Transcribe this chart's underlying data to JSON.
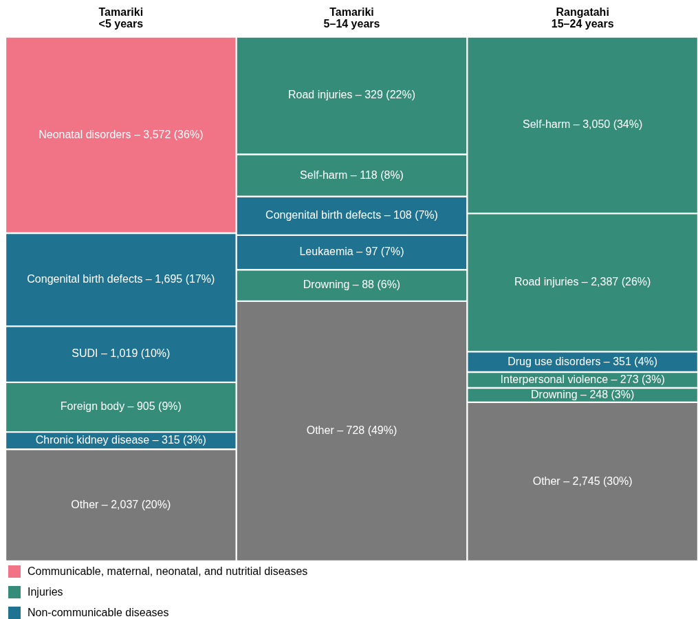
{
  "chart_data": {
    "type": "other",
    "categories": [
      "Tamariki\n<5 years",
      "Tamariki\n5–14 years",
      "Rangatahi\n15–24 years"
    ],
    "series": [
      {
        "color": "#f07386",
        "values": [
          3572,
          null,
          null
        ],
        "value_labels": [
          "3,572",
          null,
          null
        ]
      },
      {
        "color": "#1f7391",
        "values": [
          1695,
          null,
          null
        ],
        "value_labels": [
          "1,695",
          null,
          null
        ]
      },
      {
        "color": "#1f7391",
        "values": [
          1019,
          null,
          null
        ],
        "value_labels": [
          "1,019",
          null,
          null
        ]
      },
      {
        "color": "#358c78",
        "values": [
          905,
          null,
          null
        ],
        "value_labels": [
          "905",
          null,
          null
        ]
      },
      {
        "color": "#1f7391",
        "values": [
          315,
          null,
          null
        ],
        "value_labels": [
          "315",
          null,
          null
        ]
      },
      {
        "color": "#7a7a7a",
        "values": [
          2037,
          null,
          null
        ],
        "value_labels": [
          "2,037",
          null,
          null
        ]
      },
      {
        "color": "#358c78",
        "values": [
          null,
          329,
          null
        ],
        "value_labels": [
          null,
          "329",
          null
        ]
      },
      {
        "color": "#358c78",
        "values": [
          null,
          118,
          null
        ],
        "value_labels": [
          null,
          "118",
          null
        ]
      },
      {
        "color": "#1f7391",
        "values": [
          null,
          108,
          null
        ],
        "value_labels": [
          null,
          "108",
          null
        ]
      },
      {
        "color": "#1f7391",
        "values": [
          null,
          97,
          null
        ],
        "value_labels": [
          null,
          "97",
          null
        ]
      },
      {
        "color": "#358c78",
        "values": [
          null,
          88,
          null
        ],
        "value_labels": [
          null,
          "88",
          null
        ]
      },
      {
        "color": "#7a7a7a",
        "values": [
          null,
          728,
          null
        ],
        "value_labels": [
          null,
          "728",
          null
        ]
      },
      {
        "color": "#358c78",
        "values": [
          null,
          null,
          3050
        ],
        "value_labels": [
          null,
          null,
          "3,050"
        ]
      },
      {
        "color": "#358c78",
        "values": [
          null,
          null,
          2387
        ],
        "value_labels": [
          null,
          null,
          "2,387"
        ]
      },
      {
        "color": "#1f7391",
        "values": [
          null,
          null,
          351
        ],
        "value_labels": [
          null,
          null,
          "351"
        ]
      },
      {
        "color": "#358c78",
        "values": [
          null,
          null,
          273
        ],
        "value_labels": [
          null,
          null,
          "273"
        ]
      },
      {
        "color": "#358c78",
        "values": [
          null,
          null,
          248
        ],
        "value_labels": [
          null,
          null,
          "248"
        ]
      },
      {
        "color": "#7a7a7a",
        "values": [
          null,
          null,
          2745
        ],
        "value_labels": [
          null,
          null,
          "2,745"
        ]
      },
      {
        "name": "Communicable, maternal, neonatal, and nutritial diseases",
        "color": "#f07386",
        "values": [
          null,
          null,
          null
        ]
      },
      {
        "name": "Injuries",
        "color": "#358c78",
        "values": [
          null,
          null,
          null
        ]
      },
      {
        "name": "Non-communicable diseases",
        "color": "#1f7391",
        "values": [
          null,
          null,
          null
        ]
      }
    ],
    "annotations": [
      "Neonatal disorders –",
      "(36%)",
      "Congenital birth defects –",
      "(17%)",
      "SUDI –",
      "(10%)",
      "Foreign body –",
      "(9%)",
      "Chronic kidney disease –",
      "(3%)",
      "Other –",
      "(20%)",
      "Road injuries –",
      "(22%)",
      "Self-harm –",
      "(8%)",
      "Congenital birth defects –",
      "(7%)",
      "Leukaemia –",
      "(7%)",
      "Drowning –",
      "(6%)",
      "Other –",
      "(49%)",
      "Self-harm –",
      "(34%)",
      "Road injuries –",
      "(26%)",
      "Drug use disorders –",
      "(4%)",
      "Interpersonal violence –",
      "(3%)",
      "Drowning –",
      "(3%)",
      "Other –",
      "(30%)"
    ],
    "legend": "bottom left"
  }
}
